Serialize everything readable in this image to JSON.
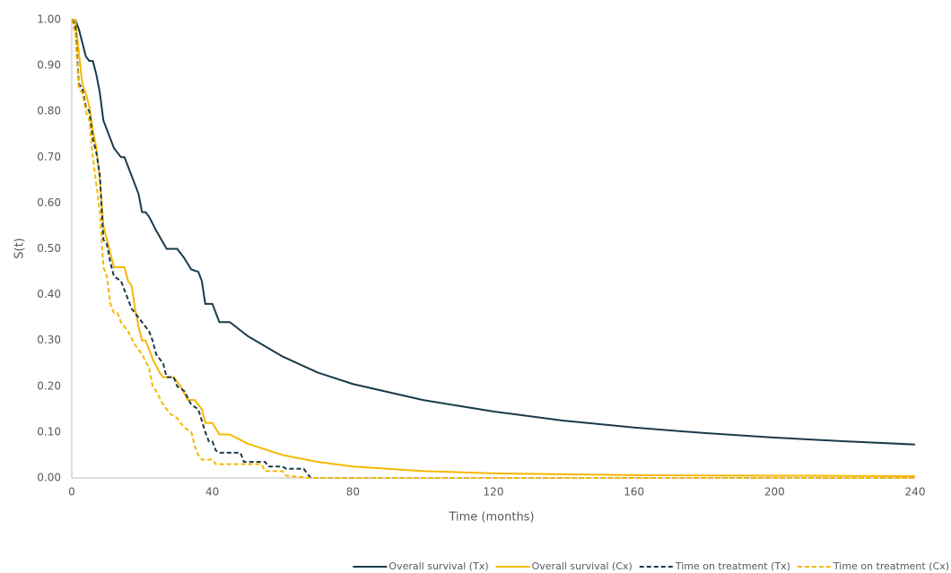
{
  "chart_data": {
    "type": "line",
    "x_label": "Time (months)",
    "y_label": "S(t)",
    "xlim": [
      0,
      240
    ],
    "xticks": [
      0,
      40,
      80,
      120,
      160,
      200,
      240
    ],
    "ylim": [
      0,
      1
    ],
    "yticks": [
      {
        "value": 0,
        "label": "0.00"
      },
      {
        "value": 0.1,
        "label": "0.10"
      },
      {
        "value": 0.2,
        "label": "0.20"
      },
      {
        "value": 0.3,
        "label": "0.30"
      },
      {
        "value": 0.4,
        "label": "0.40"
      },
      {
        "value": 0.5,
        "label": "0.50"
      },
      {
        "value": 0.6,
        "label": "0.60"
      },
      {
        "value": 0.7,
        "label": "0.70"
      },
      {
        "value": 0.8,
        "label": "0.80"
      },
      {
        "value": 0.9,
        "label": "0.90"
      },
      {
        "value": 1,
        "label": "1.00"
      }
    ],
    "legend": "bottom-right",
    "series": [
      {
        "name": "Overall survival (Tx)",
        "color": "#1b3a4b",
        "dashed": false,
        "x": [
          0,
          1,
          2,
          3,
          4,
          5,
          6,
          7,
          8,
          9,
          10,
          12,
          14,
          15,
          16,
          17,
          19,
          20,
          21,
          22,
          24,
          27,
          30,
          32,
          34,
          36,
          37,
          38,
          39,
          40,
          41,
          42,
          45,
          50,
          60,
          70,
          80,
          100,
          120,
          140,
          160,
          180,
          200,
          220,
          240
        ],
        "values": [
          1,
          1,
          0.98,
          0.95,
          0.92,
          0.91,
          0.91,
          0.88,
          0.84,
          0.78,
          0.76,
          0.72,
          0.7,
          0.7,
          0.68,
          0.66,
          0.62,
          0.58,
          0.58,
          0.57,
          0.54,
          0.5,
          0.5,
          0.48,
          0.455,
          0.45,
          0.43,
          0.38,
          0.38,
          0.38,
          0.36,
          0.34,
          0.34,
          0.31,
          0.265,
          0.23,
          0.205,
          0.17,
          0.145,
          0.125,
          0.11,
          0.098,
          0.088,
          0.08,
          0.073
        ]
      },
      {
        "name": "Overall survival (Cx)",
        "color": "#f5b800",
        "dashed": false,
        "x": [
          0,
          1,
          2,
          3,
          4,
          5,
          6,
          7,
          8,
          9,
          10,
          11,
          12,
          15,
          16,
          17,
          18,
          19,
          20,
          21,
          22,
          23,
          25,
          26,
          29,
          31,
          33,
          35,
          37,
          38,
          40,
          42,
          45,
          50,
          60,
          70,
          80,
          100,
          120,
          160,
          200,
          240
        ],
        "values": [
          1,
          1,
          0.93,
          0.86,
          0.84,
          0.81,
          0.76,
          0.72,
          0.65,
          0.55,
          0.52,
          0.49,
          0.46,
          0.46,
          0.43,
          0.42,
          0.37,
          0.33,
          0.3,
          0.3,
          0.28,
          0.26,
          0.23,
          0.22,
          0.22,
          0.2,
          0.17,
          0.17,
          0.15,
          0.12,
          0.12,
          0.095,
          0.095,
          0.075,
          0.05,
          0.035,
          0.025,
          0.015,
          0.01,
          0.006,
          0.005,
          0.004
        ]
      },
      {
        "name": "Time on treatment (Tx)",
        "color": "#1b3a4b",
        "dashed": true,
        "x": [
          0,
          1,
          2,
          3,
          4,
          5,
          6,
          7,
          8,
          9,
          10,
          11,
          12,
          14,
          15,
          17,
          19,
          22,
          23,
          24,
          26,
          27,
          29,
          30,
          32,
          34,
          36,
          38,
          39,
          40,
          41,
          42,
          48,
          49,
          55,
          56,
          60,
          61,
          66,
          67,
          68,
          240
        ],
        "values": [
          1,
          0.99,
          0.86,
          0.85,
          0.81,
          0.8,
          0.74,
          0.71,
          0.66,
          0.52,
          0.51,
          0.47,
          0.44,
          0.43,
          0.41,
          0.37,
          0.35,
          0.32,
          0.3,
          0.27,
          0.25,
          0.22,
          0.22,
          0.2,
          0.19,
          0.16,
          0.15,
          0.1,
          0.08,
          0.08,
          0.06,
          0.055,
          0.055,
          0.035,
          0.035,
          0.025,
          0.025,
          0.02,
          0.02,
          0.01,
          0,
          0
        ]
      },
      {
        "name": "Time on treatment (Cx)",
        "color": "#f5b800",
        "dashed": true,
        "x": [
          0,
          1,
          2,
          3,
          4,
          5,
          6,
          7,
          8,
          9,
          10,
          11,
          12,
          13,
          14,
          16,
          18,
          20,
          22,
          23,
          24,
          26,
          27,
          28,
          30,
          32,
          34,
          35,
          36,
          37,
          40,
          41,
          54,
          55,
          60,
          61,
          68,
          240
        ],
        "values": [
          1,
          0.97,
          0.85,
          0.84,
          0.8,
          0.78,
          0.7,
          0.64,
          0.58,
          0.46,
          0.44,
          0.38,
          0.36,
          0.36,
          0.34,
          0.32,
          0.29,
          0.27,
          0.24,
          0.2,
          0.19,
          0.16,
          0.15,
          0.14,
          0.13,
          0.11,
          0.1,
          0.07,
          0.05,
          0.04,
          0.04,
          0.03,
          0.03,
          0.015,
          0.015,
          0.005,
          0,
          0
        ]
      }
    ]
  }
}
